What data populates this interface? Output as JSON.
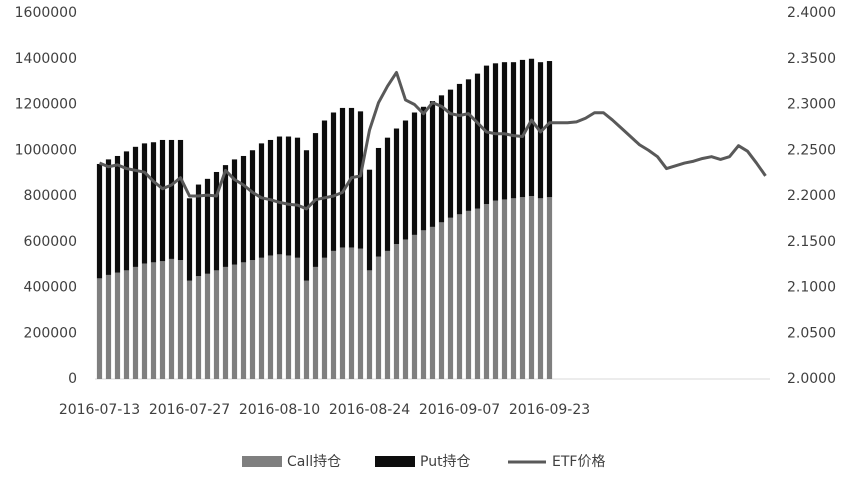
{
  "chart_data": {
    "type": "bar",
    "stacked": true,
    "categories": [
      "2016-07-13",
      null,
      null,
      null,
      null,
      null,
      null,
      null,
      null,
      null,
      "2016-07-27",
      null,
      null,
      null,
      null,
      null,
      null,
      null,
      null,
      null,
      "2016-08-10",
      null,
      null,
      null,
      null,
      null,
      null,
      null,
      null,
      null,
      "2016-08-24",
      null,
      null,
      null,
      null,
      null,
      null,
      null,
      null,
      null,
      "2016-09-07",
      null,
      null,
      null,
      null,
      null,
      null,
      null,
      null,
      null,
      "2016-09-23",
      null,
      null,
      null,
      null,
      null,
      null,
      null,
      null,
      null,
      null,
      null,
      null,
      null,
      null,
      null,
      null,
      null,
      null,
      null,
      null,
      null,
      null,
      null,
      null
    ],
    "series": [
      {
        "name": "Call持仓",
        "color": "#7f7f7f",
        "values": [
          440000,
          455000,
          465000,
          475000,
          490000,
          505000,
          510000,
          515000,
          525000,
          520000,
          430000,
          450000,
          460000,
          475000,
          490000,
          500000,
          510000,
          520000,
          530000,
          540000,
          545000,
          540000,
          530000,
          430000,
          490000,
          530000,
          560000,
          575000,
          575000,
          570000,
          475000,
          535000,
          560000,
          590000,
          610000,
          630000,
          650000,
          665000,
          685000,
          705000,
          720000,
          735000,
          745000,
          765000,
          780000,
          785000,
          790000,
          795000,
          800000,
          790000,
          795000,
          null,
          null,
          null,
          null,
          null,
          null,
          null,
          null,
          null,
          null,
          null,
          null,
          null,
          null,
          null,
          null,
          null,
          null,
          null,
          null,
          null,
          null,
          null,
          null
        ]
      },
      {
        "name": "Put持仓",
        "color": "#0d0d0d",
        "values": [
          500000,
          505000,
          510000,
          520000,
          525000,
          525000,
          525000,
          530000,
          520000,
          525000,
          360000,
          400000,
          415000,
          430000,
          445000,
          460000,
          465000,
          480000,
          500000,
          505000,
          515000,
          520000,
          525000,
          570000,
          585000,
          600000,
          605000,
          610000,
          610000,
          600000,
          440000,
          475000,
          495000,
          505000,
          520000,
          535000,
          540000,
          550000,
          555000,
          560000,
          570000,
          575000,
          590000,
          605000,
          600000,
          600000,
          595000,
          600000,
          600000,
          595000,
          595000,
          null,
          null,
          null,
          null,
          null,
          null,
          null,
          null,
          null,
          null,
          null,
          null,
          null,
          null,
          null,
          null,
          null,
          null,
          null,
          null,
          null,
          null,
          null,
          null
        ]
      },
      {
        "name": "ETF价格",
        "type": "line",
        "axis": "y2",
        "color": "#595959",
        "values": [
          2.236,
          2.232,
          2.234,
          2.23,
          2.228,
          2.226,
          2.216,
          2.208,
          2.212,
          2.22,
          2.2,
          2.2,
          2.201,
          2.2,
          2.228,
          2.218,
          2.212,
          2.204,
          2.198,
          2.196,
          2.193,
          2.191,
          2.19,
          2.186,
          2.196,
          2.198,
          2.2,
          2.204,
          2.22,
          2.222,
          2.272,
          2.302,
          2.32,
          2.335,
          2.305,
          2.3,
          2.29,
          2.302,
          2.298,
          2.29,
          2.288,
          2.29,
          2.28,
          2.27,
          2.268,
          2.268,
          2.266,
          2.265,
          2.283,
          2.27,
          2.28,
          2.28,
          2.28,
          2.281,
          2.285,
          2.291,
          2.291,
          2.283,
          2.274,
          2.265,
          2.256,
          2.25,
          2.243,
          2.23,
          2.233,
          2.236,
          2.238,
          2.241,
          2.243,
          2.24,
          2.243,
          2.255,
          2.249,
          2.236,
          2.222
        ]
      }
    ],
    "ylim": [
      0,
      1600000
    ],
    "yticks": [
      0,
      200000,
      400000,
      600000,
      800000,
      1000000,
      1200000,
      1400000,
      1600000
    ],
    "y2lim": [
      2.0,
      2.4
    ],
    "y2ticks": [
      {
        "value": 2.0,
        "label": "2.0000"
      },
      {
        "value": 2.05,
        "label": "2.0500"
      },
      {
        "value": 2.1,
        "label": "2.1000"
      },
      {
        "value": 2.15,
        "label": "2.1500"
      },
      {
        "value": 2.2,
        "label": "2.2000"
      },
      {
        "value": 2.25,
        "label": "2.2500"
      },
      {
        "value": 2.3,
        "label": "2.3000"
      },
      {
        "value": 2.35,
        "label": "2.3500"
      },
      {
        "value": 2.4,
        "label": "2.4000"
      }
    ],
    "grid": false,
    "legend": "bottom"
  }
}
